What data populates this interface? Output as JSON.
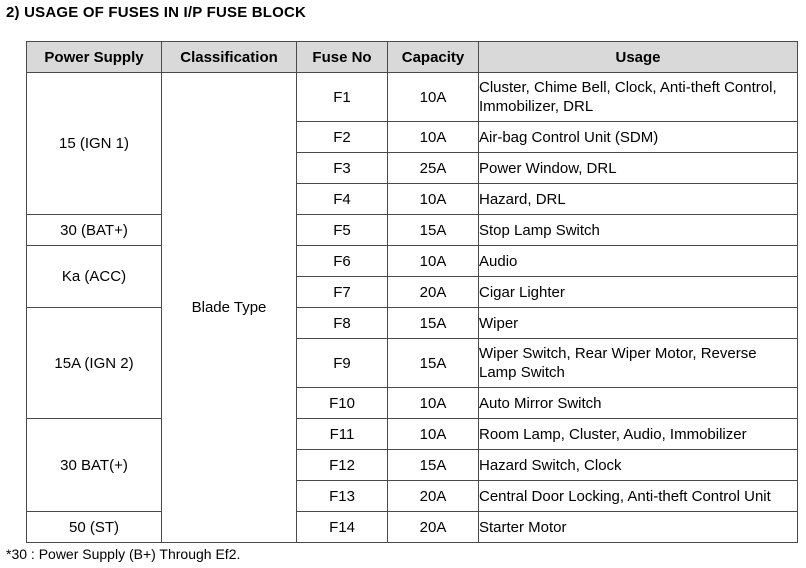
{
  "heading": "2) USAGE OF FUSES IN I/P FUSE BLOCK",
  "columns": [
    "Power Supply",
    "Classification",
    "Fuse No",
    "Capacity",
    "Usage"
  ],
  "power_supply_groups": [
    "15 (IGN 1)",
    "30 (BAT+)",
    "Ka (ACC)",
    "15A (IGN 2)",
    "30 BAT(+)",
    "50 (ST)"
  ],
  "classification": "Blade Type",
  "rows": [
    {
      "fuse": "F1",
      "capacity": "10A",
      "usage": "Cluster, Chime Bell, Clock, Anti-theft Control, Immobilizer, DRL"
    },
    {
      "fuse": "F2",
      "capacity": "10A",
      "usage": "Air-bag Control Unit (SDM)"
    },
    {
      "fuse": "F3",
      "capacity": "25A",
      "usage": "Power Window, DRL"
    },
    {
      "fuse": "F4",
      "capacity": "10A",
      "usage": "Hazard, DRL"
    },
    {
      "fuse": "F5",
      "capacity": "15A",
      "usage": "Stop Lamp Switch"
    },
    {
      "fuse": "F6",
      "capacity": "10A",
      "usage": "Audio"
    },
    {
      "fuse": "F7",
      "capacity": "20A",
      "usage": "Cigar Lighter"
    },
    {
      "fuse": "F8",
      "capacity": "15A",
      "usage": "Wiper"
    },
    {
      "fuse": "F9",
      "capacity": "15A",
      "usage": "Wiper Switch, Rear Wiper Motor, Reverse Lamp Switch"
    },
    {
      "fuse": "F10",
      "capacity": "10A",
      "usage": "Auto Mirror Switch"
    },
    {
      "fuse": "F11",
      "capacity": "10A",
      "usage": "Room Lamp, Cluster, Audio, Immobilizer"
    },
    {
      "fuse": "F12",
      "capacity": "15A",
      "usage": "Hazard Switch, Clock"
    },
    {
      "fuse": "F13",
      "capacity": "20A",
      "usage": "Central Door Locking, Anti-theft Control Unit"
    },
    {
      "fuse": "F14",
      "capacity": "20A",
      "usage": "Starter Motor"
    }
  ],
  "footnote": "*30 : Power Supply (B+) Through Ef2."
}
